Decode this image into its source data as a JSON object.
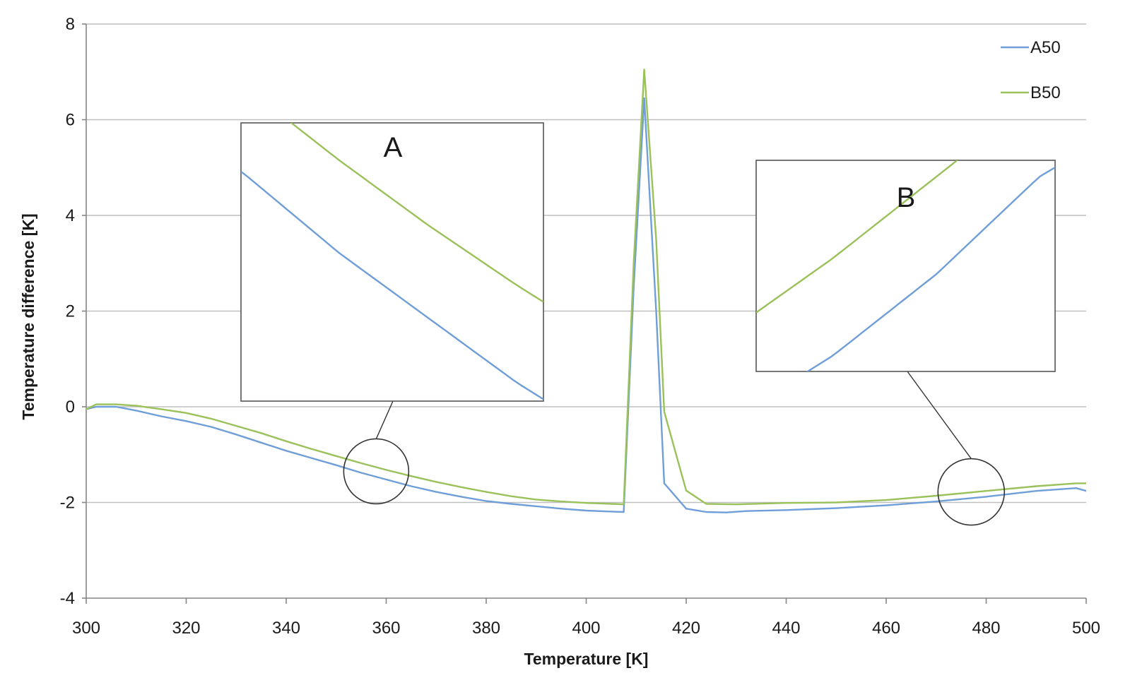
{
  "chart_data": {
    "type": "line",
    "title": "",
    "xlabel": "Temperature [K]",
    "ylabel": "Temperature difference [K]",
    "xlim": [
      300,
      500
    ],
    "ylim": [
      -4,
      8
    ],
    "x_ticks": [
      300,
      320,
      340,
      360,
      380,
      400,
      420,
      440,
      460,
      480,
      500
    ],
    "y_ticks": [
      -4,
      -2,
      0,
      2,
      4,
      6,
      8
    ],
    "y_tick_labels": [
      "-4",
      "-2",
      "0",
      "2",
      "4",
      "6",
      "8"
    ],
    "grid": "horizontal",
    "legend_position": "top-right",
    "series": [
      {
        "name": "A50",
        "color": "#6f9ed8",
        "points": [
          [
            300,
            -0.05
          ],
          [
            302,
            0.0
          ],
          [
            306,
            0.0
          ],
          [
            310,
            -0.08
          ],
          [
            315,
            -0.2
          ],
          [
            320,
            -0.3
          ],
          [
            325,
            -0.42
          ],
          [
            330,
            -0.58
          ],
          [
            335,
            -0.75
          ],
          [
            340,
            -0.92
          ],
          [
            345,
            -1.07
          ],
          [
            350,
            -1.22
          ],
          [
            355,
            -1.38
          ],
          [
            360,
            -1.52
          ],
          [
            365,
            -1.66
          ],
          [
            370,
            -1.78
          ],
          [
            375,
            -1.88
          ],
          [
            380,
            -1.97
          ],
          [
            385,
            -2.03
          ],
          [
            390,
            -2.08
          ],
          [
            395,
            -2.13
          ],
          [
            400,
            -2.17
          ],
          [
            405,
            -2.19
          ],
          [
            407.5,
            -2.2
          ],
          [
            409.5,
            2.5
          ],
          [
            411.6,
            6.45
          ],
          [
            414,
            2.0
          ],
          [
            415.6,
            -1.6
          ],
          [
            420,
            -2.13
          ],
          [
            424,
            -2.2
          ],
          [
            428,
            -2.21
          ],
          [
            432,
            -2.18
          ],
          [
            440,
            -2.16
          ],
          [
            450,
            -2.12
          ],
          [
            460,
            -2.06
          ],
          [
            470,
            -1.98
          ],
          [
            480,
            -1.88
          ],
          [
            490,
            -1.76
          ],
          [
            498,
            -1.7
          ],
          [
            500,
            -1.76
          ]
        ]
      },
      {
        "name": "B50",
        "color": "#9ac15a",
        "points": [
          [
            300,
            -0.05
          ],
          [
            302,
            0.05
          ],
          [
            306,
            0.05
          ],
          [
            310,
            0.02
          ],
          [
            315,
            -0.05
          ],
          [
            320,
            -0.13
          ],
          [
            325,
            -0.25
          ],
          [
            330,
            -0.4
          ],
          [
            335,
            -0.55
          ],
          [
            340,
            -0.72
          ],
          [
            345,
            -0.88
          ],
          [
            350,
            -1.03
          ],
          [
            355,
            -1.18
          ],
          [
            360,
            -1.32
          ],
          [
            365,
            -1.45
          ],
          [
            370,
            -1.57
          ],
          [
            375,
            -1.68
          ],
          [
            380,
            -1.78
          ],
          [
            385,
            -1.87
          ],
          [
            390,
            -1.94
          ],
          [
            395,
            -1.98
          ],
          [
            400,
            -2.01
          ],
          [
            405,
            -2.03
          ],
          [
            407.5,
            -2.04
          ],
          [
            409.5,
            3.0
          ],
          [
            411.6,
            7.05
          ],
          [
            414,
            3.5
          ],
          [
            415.6,
            -0.1
          ],
          [
            418,
            -1.0
          ],
          [
            420,
            -1.75
          ],
          [
            424,
            -2.03
          ],
          [
            430,
            -2.04
          ],
          [
            440,
            -2.01
          ],
          [
            450,
            -2.0
          ],
          [
            460,
            -1.95
          ],
          [
            470,
            -1.86
          ],
          [
            480,
            -1.76
          ],
          [
            490,
            -1.66
          ],
          [
            498,
            -1.6
          ],
          [
            500,
            -1.6
          ]
        ]
      }
    ],
    "annotations": [
      {
        "label": "A",
        "zoom_center": [
          358,
          -1.35
        ],
        "inset_range": {
          "x": [
            349.5,
            366.5
          ],
          "y": [
            -1.7,
            -1.1
          ]
        }
      },
      {
        "label": "B",
        "zoom_center": [
          477,
          -1.78
        ],
        "inset_range": {
          "x": [
            462.5,
            491.5
          ],
          "y": [
            -2.0,
            -1.74
          ]
        }
      }
    ]
  }
}
